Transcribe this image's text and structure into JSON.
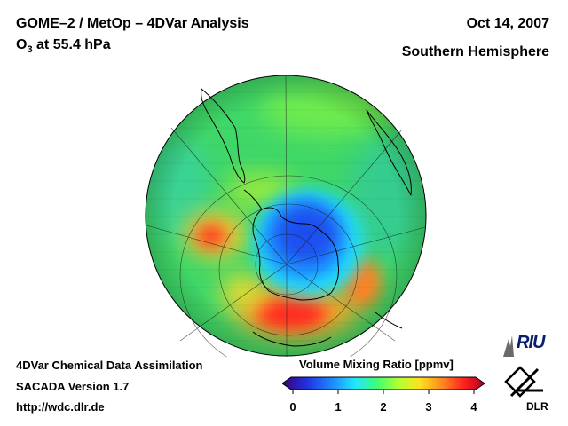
{
  "header": {
    "title_line1": "GOME–2 / MetOp – 4DVar Analysis",
    "title_line2_prefix": "O",
    "title_line2_subscript": "3",
    "title_line2_suffix": " at 55.4 hPa",
    "date": "Oct 14, 2007",
    "hemisphere": "Southern Hemisphere"
  },
  "footer": {
    "line1": "4DVar Chemical Data Assimilation",
    "line2": "SACADA Version 1.7",
    "line3": "http://wdc.dlr.de"
  },
  "colorbar": {
    "title": "Volume Mixing Ratio [ppmv]",
    "min": 0,
    "max": 4,
    "ticks": [
      "0",
      "1",
      "2",
      "3",
      "4"
    ],
    "colors": [
      "#3a0078",
      "#2020e0",
      "#1e8cff",
      "#22e6ff",
      "#40ff70",
      "#b8ff30",
      "#ffe020",
      "#ff8020",
      "#ff2020",
      "#b00020"
    ]
  },
  "logos": {
    "riu": "RIU",
    "dlr": "DLR"
  },
  "map": {
    "projection": "orthographic, south pole view",
    "colors": {
      "low": "#2050f0",
      "mid": "#40e060",
      "high": "#ff3020",
      "background": "#40d070"
    }
  }
}
